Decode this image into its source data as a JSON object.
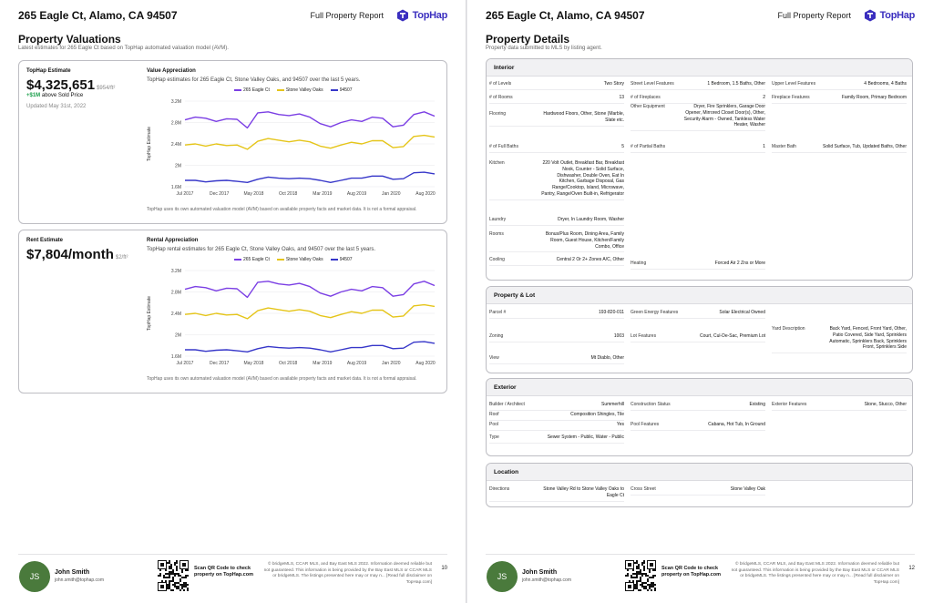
{
  "address": "265 Eagle Ct, Alamo, CA 94507",
  "report_label": "Full Property Report",
  "brand": {
    "name": "TopHap",
    "color": "#3b2fbf"
  },
  "valuations": {
    "title": "Property Valuations",
    "subtitle": "Latest estimates for 265 Eagle Ct based on TopHap automated valuation model (AVM).",
    "estimate": {
      "label": "TopHap Estimate",
      "value": "$4,325,651",
      "per_sqft": "$954/ft²",
      "delta": "+$1M",
      "delta_text": "above Sold Price",
      "updated": "Updated May 31st, 2022"
    },
    "rent": {
      "label": "Rent Estimate",
      "value": "$7,804/month",
      "per_sqft": "$2/ft²"
    }
  },
  "footer": {
    "agent_initials": "JS",
    "agent_name": "John Smith",
    "agent_email": "john.smith@tophap.com",
    "qr_text": "Scan QR Code to check property on TopHap.com",
    "disclaimer": "© bridgeMLS, CCAR MLS, and Bay East MLS 2022. Information deemed reliable but not guaranteed. This information is being provided by the Bay East MLS or CCAR MLS or bridgeMLS. The listings presented here may or may n... [Read full disclaimer on TopHap.com]",
    "page_left": "10",
    "page_right": "12"
  },
  "chart_data": [
    {
      "type": "line",
      "title": "Value Appreciation",
      "subtitle": "TopHap estimates for 265 Eagle Ct, Stone Valley Oaks, and 94507 over the last 5 years.",
      "ylabel": "TopHap Estimate",
      "footnote": "TopHap uses its own automated valuation model (AVM) based on available property facts and market data. It is not a formal appraisal.",
      "x_ticks": [
        "Jul 2017",
        "Dec 2017",
        "May 2018",
        "Oct 2018",
        "Mar 2019",
        "Aug 2019",
        "Jan 2020",
        "Aug 2020"
      ],
      "y_ticks": [
        "3.2M",
        "2.8M",
        "2.4M",
        "2M",
        "1.6M"
      ],
      "ylim": [
        1.6,
        3.2
      ],
      "series": [
        {
          "name": "265 Eagle Ct",
          "color": "#7b3fe4",
          "values": [
            2.85,
            2.9,
            2.88,
            2.82,
            2.87,
            2.86,
            2.7,
            2.98,
            3.0,
            2.95,
            2.93,
            2.96,
            2.9,
            2.78,
            2.72,
            2.8,
            2.85,
            2.82,
            2.9,
            2.88,
            2.72,
            2.75,
            2.95,
            3.0,
            2.92
          ]
        },
        {
          "name": "Stone Valley Oaks",
          "color": "#e5c51a",
          "values": [
            2.38,
            2.4,
            2.36,
            2.4,
            2.37,
            2.38,
            2.3,
            2.45,
            2.5,
            2.47,
            2.44,
            2.47,
            2.44,
            2.36,
            2.32,
            2.38,
            2.43,
            2.4,
            2.46,
            2.46,
            2.33,
            2.35,
            2.54,
            2.56,
            2.53
          ]
        },
        {
          "name": "94507",
          "color": "#3737c9",
          "values": [
            1.72,
            1.72,
            1.69,
            1.71,
            1.72,
            1.7,
            1.68,
            1.74,
            1.78,
            1.76,
            1.75,
            1.76,
            1.75,
            1.72,
            1.68,
            1.72,
            1.76,
            1.76,
            1.8,
            1.8,
            1.74,
            1.75,
            1.86,
            1.87,
            1.84
          ]
        }
      ]
    },
    {
      "type": "line",
      "title": "Rental Appreciation",
      "subtitle": "TopHap rental estimates for 265 Eagle Ct, Stone Valley Oaks, and 94507 over the last 5 years.",
      "ylabel": "TopHap Estimate",
      "footnote": "TopHap uses its own automated valuation model (AVM) based on available property facts and market data. It is not a formal appraisal.",
      "x_ticks": [
        "Jul 2017",
        "Dec 2017",
        "May 2018",
        "Oct 2018",
        "Mar 2019",
        "Aug 2019",
        "Jan 2020",
        "Aug 2020"
      ],
      "y_ticks": [
        "3.2M",
        "2.8M",
        "2.4M",
        "2M",
        "1.6M"
      ],
      "ylim": [
        1.6,
        3.2
      ],
      "series": [
        {
          "name": "265 Eagle Ct",
          "color": "#7b3fe4",
          "values": [
            2.85,
            2.9,
            2.88,
            2.82,
            2.87,
            2.86,
            2.7,
            2.98,
            3.0,
            2.95,
            2.93,
            2.96,
            2.9,
            2.78,
            2.72,
            2.8,
            2.85,
            2.82,
            2.9,
            2.88,
            2.72,
            2.75,
            2.95,
            3.0,
            2.92
          ]
        },
        {
          "name": "Stone Valley Oaks",
          "color": "#e5c51a",
          "values": [
            2.38,
            2.4,
            2.36,
            2.4,
            2.37,
            2.38,
            2.3,
            2.45,
            2.5,
            2.47,
            2.44,
            2.47,
            2.44,
            2.36,
            2.32,
            2.38,
            2.43,
            2.4,
            2.46,
            2.46,
            2.33,
            2.35,
            2.54,
            2.56,
            2.53
          ]
        },
        {
          "name": "94507",
          "color": "#3737c9",
          "values": [
            1.72,
            1.72,
            1.69,
            1.71,
            1.72,
            1.7,
            1.68,
            1.74,
            1.78,
            1.76,
            1.75,
            1.76,
            1.75,
            1.72,
            1.68,
            1.72,
            1.76,
            1.76,
            1.8,
            1.8,
            1.74,
            1.75,
            1.86,
            1.87,
            1.84
          ]
        }
      ]
    }
  ],
  "details": {
    "title": "Property Details",
    "subtitle": "Property data submitted to MLS by listing agent.",
    "sections": [
      {
        "title": "Interior",
        "items": [
          {
            "k": "# of Levels",
            "v": "Two Story"
          },
          {
            "k": "Street Level Features",
            "v": "1 Bedroom, 1.5 Baths, Other"
          },
          {
            "k": "Upper Level Features",
            "v": "4 Bedrooms, 4 Baths"
          },
          {
            "k": "# of Rooms",
            "v": "13"
          },
          {
            "k": "# of Fireplaces",
            "v": "2"
          },
          {
            "k": "Fireplace Features",
            "v": "Family Room, Primary Bedroom"
          },
          {
            "k": "Flooring",
            "v": "Hardwood Floors, Other, Stone (Marble, Slate etc."
          },
          {
            "k": "Other Equipment",
            "v": "Dryer, Fire Sprinklers, Garage Door Opener, Mirrored Closet Door(s), Other, Security Alarm - Owned, Tankless Water Heater, Washer"
          },
          {
            "k": "# of Full Baths",
            "v": "5"
          },
          {
            "k": "# of Partial Baths",
            "v": "1"
          },
          {
            "k": "Master Bath",
            "v": "Solid Surface, Tub, Updated Baths, Other"
          },
          {
            "k": "Kitchen",
            "v": "220 Volt Outlet, Breakfast Bar, Breakfast Nook, Counter - Solid Surface, Dishwasher, Double Oven, Eat In Kitchen, Garbage Disposal, Gas Range/Cooktop, Island, Microwave, Pantry, Range/Oven Built-in, Refrigerator"
          },
          {
            "k": "Laundry",
            "v": "Dryer, In Laundry Room, Washer"
          },
          {
            "k": "Rooms",
            "v": "Bonus/Plus Room, Dining Area, Family Room, Guest House, Kitchen/Family Combo, Office"
          },
          {
            "k": "Cooling",
            "v": "Central 2 Or 2+ Zones A/C, Other"
          },
          {
            "k": "Heating",
            "v": "Forced Air 2 Zns or More"
          }
        ]
      },
      {
        "title": "Property & Lot",
        "items": [
          {
            "k": "Parcel #",
            "v": "193-820-011"
          },
          {
            "k": "Green Energy Features",
            "v": "Solar Electrical Owned"
          },
          {
            "k": "Yard Description",
            "v": "Back Yard, Fenced, Front Yard, Other, Patio Covered, Side Yard, Sprinklers Automatic, Sprinklers Back, Sprinklers Front, Sprinklers Side"
          },
          {
            "k": "Zoning",
            "v": "1003"
          },
          {
            "k": "Lot Features",
            "v": "Court, Cul-De-Sac, Premium Lot"
          },
          {
            "k": "View",
            "v": "Mt Diablo, Other"
          }
        ]
      },
      {
        "title": "Exterior",
        "items": [
          {
            "k": "Builder / Architect",
            "v": "Summerhill"
          },
          {
            "k": "Construction Status",
            "v": "Existing"
          },
          {
            "k": "Exterior Features",
            "v": "Stone, Stucco, Other"
          },
          {
            "k": "Roof",
            "v": "Composition Shingles, Tile"
          },
          {
            "k": "Pool",
            "v": "Yes"
          },
          {
            "k": "Pool Features",
            "v": "Cabana, Hot Tub, In Ground"
          },
          {
            "k": "Type",
            "v": "Sewer System - Public, Water - Public"
          }
        ]
      },
      {
        "title": "Location",
        "items": [
          {
            "k": "Directions",
            "v": "Stone Valley Rd to Stone Valley Oaks to Eagle Ct"
          },
          {
            "k": "Cross Street",
            "v": "Stone Valley Oak"
          }
        ]
      }
    ]
  }
}
